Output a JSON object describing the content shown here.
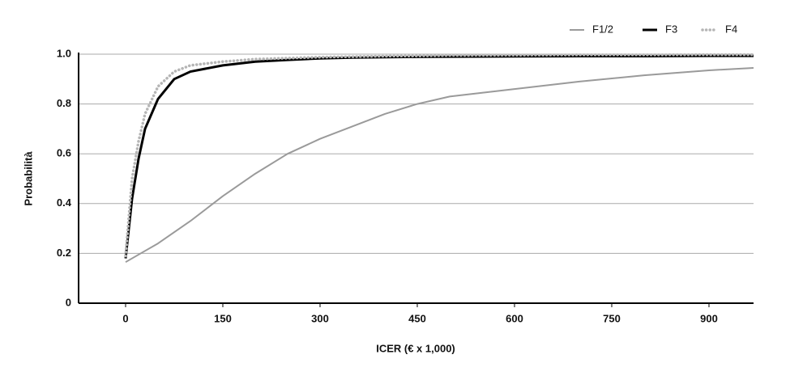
{
  "chart_data": {
    "type": "line",
    "x_label": "ICER (€ x 1,000)",
    "y_label": "Probabilità",
    "x": [
      0,
      10,
      20,
      30,
      50,
      75,
      100,
      150,
      200,
      250,
      300,
      350,
      400,
      450,
      500,
      600,
      700,
      800,
      900,
      968.75
    ],
    "series": [
      {
        "name": "F1/2",
        "color": "#9a9a9a",
        "width": 2,
        "dash": "solid",
        "values": [
          0.165,
          0.18,
          0.195,
          0.21,
          0.24,
          0.285,
          0.33,
          0.43,
          0.52,
          0.6,
          0.66,
          0.71,
          0.76,
          0.8,
          0.83,
          0.86,
          0.89,
          0.915,
          0.935,
          0.945
        ]
      },
      {
        "name": "F3",
        "color": "#000000",
        "width": 3,
        "dash": "solid",
        "values": [
          0.18,
          0.42,
          0.58,
          0.7,
          0.82,
          0.9,
          0.93,
          0.955,
          0.97,
          0.977,
          0.983,
          0.986,
          0.988,
          0.989,
          0.99,
          0.991,
          0.992,
          0.992,
          0.993,
          0.993
        ]
      },
      {
        "name": "F4",
        "color": "#b5b5b5",
        "width": 3.5,
        "dash": "dotted",
        "values": [
          0.19,
          0.5,
          0.65,
          0.76,
          0.87,
          0.93,
          0.955,
          0.97,
          0.98,
          0.984,
          0.988,
          0.99,
          0.992,
          0.993,
          0.995,
          0.996,
          0.997,
          0.997,
          0.998,
          0.998
        ]
      }
    ],
    "xlim": [
      -72.5,
      968.75
    ],
    "xticks": [
      0,
      150,
      300,
      450,
      600,
      750,
      900
    ],
    "ylim": [
      0,
      1
    ],
    "yticks": [
      0,
      0.2,
      0.4,
      0.6,
      0.8,
      {
        "value": 1,
        "label": "1.0"
      }
    ],
    "grid": true,
    "legend": "top-right"
  }
}
